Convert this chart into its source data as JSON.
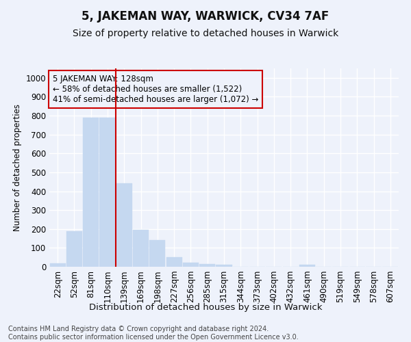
{
  "title": "5, JAKEMAN WAY, WARWICK, CV34 7AF",
  "subtitle": "Size of property relative to detached houses in Warwick",
  "xlabel": "Distribution of detached houses by size in Warwick",
  "ylabel": "Number of detached properties",
  "categories": [
    "22sqm",
    "52sqm",
    "81sqm",
    "110sqm",
    "139sqm",
    "169sqm",
    "198sqm",
    "227sqm",
    "256sqm",
    "285sqm",
    "315sqm",
    "344sqm",
    "373sqm",
    "402sqm",
    "432sqm",
    "461sqm",
    "490sqm",
    "519sqm",
    "549sqm",
    "578sqm",
    "607sqm"
  ],
  "values": [
    18,
    190,
    790,
    790,
    440,
    195,
    140,
    50,
    20,
    15,
    10,
    0,
    0,
    0,
    0,
    10,
    0,
    0,
    0,
    0,
    0
  ],
  "bar_color": "#c5d8f0",
  "bar_edgecolor": "#c5d8f0",
  "vline_x": 4.0,
  "vline_color": "#cc0000",
  "annotation_text": "5 JAKEMAN WAY: 128sqm\n← 58% of detached houses are smaller (1,522)\n41% of semi-detached houses are larger (1,072) →",
  "annotation_box_edgecolor": "#cc0000",
  "ylim": [
    0,
    1050
  ],
  "yticks": [
    0,
    100,
    200,
    300,
    400,
    500,
    600,
    700,
    800,
    900,
    1000
  ],
  "background_color": "#eef2fb",
  "grid_color": "#ffffff",
  "footer": "Contains HM Land Registry data © Crown copyright and database right 2024.\nContains public sector information licensed under the Open Government Licence v3.0.",
  "title_fontsize": 12,
  "subtitle_fontsize": 10,
  "xlabel_fontsize": 9.5,
  "ylabel_fontsize": 8.5,
  "annotation_fontsize": 8.5,
  "tick_fontsize": 8.5,
  "footer_fontsize": 7
}
